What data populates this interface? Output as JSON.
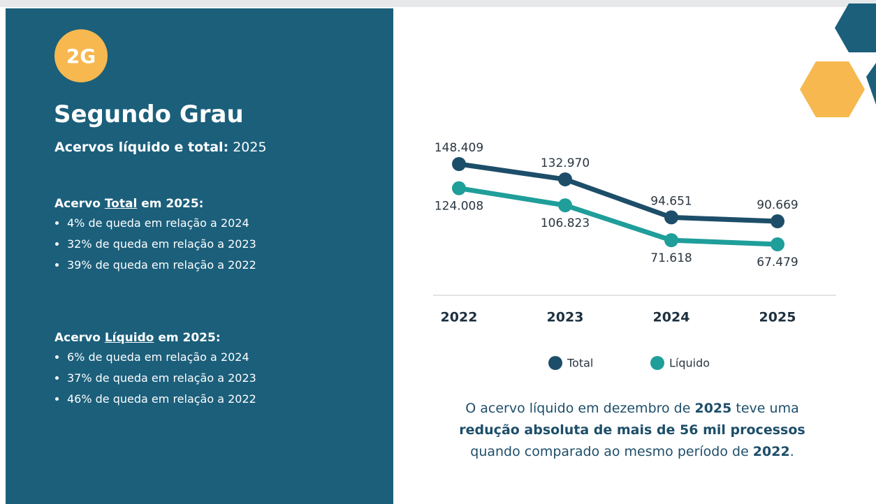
{
  "panel": {
    "badge": "2G",
    "title": "Segundo Grau",
    "subtitle": {
      "label": "Acervos líquido e total:",
      "year": "2025"
    },
    "sections": [
      {
        "heading": [
          "Acervo ",
          "Total",
          " em 2025:"
        ],
        "items": [
          "4% de queda em relação a 2024",
          "32% de queda em relação a 2023",
          "39% de queda em relação a 2022"
        ]
      },
      {
        "heading": [
          "Acervo ",
          "Líquido",
          " em 2025:"
        ],
        "items": [
          "6% de queda em relação a 2024",
          "37% de queda em relação a 2023",
          "46% de queda em relação a 2022"
        ]
      }
    ]
  },
  "chart_data": {
    "type": "line",
    "categories": [
      "2022",
      "2023",
      "2024",
      "2025"
    ],
    "series": [
      {
        "name": "Total",
        "color": "#1d4e69",
        "values": [
          148409,
          132970,
          94651,
          90669
        ],
        "value_labels": [
          "148.409",
          "132.970",
          "94.651",
          "90.669"
        ]
      },
      {
        "name": "Líquido",
        "color": "#1f9e9a",
        "values": [
          124008,
          106823,
          71618,
          67479
        ],
        "value_labels": [
          "124.008",
          "106.823",
          "71.618",
          "67.479"
        ]
      }
    ]
  },
  "caption": [
    "O acervo líquido em dezembro de ",
    "2025",
    " teve uma",
    "redução absoluta de mais de 56 mil processos",
    "quando comparado ao mesmo período de ",
    "2022",
    "."
  ]
}
